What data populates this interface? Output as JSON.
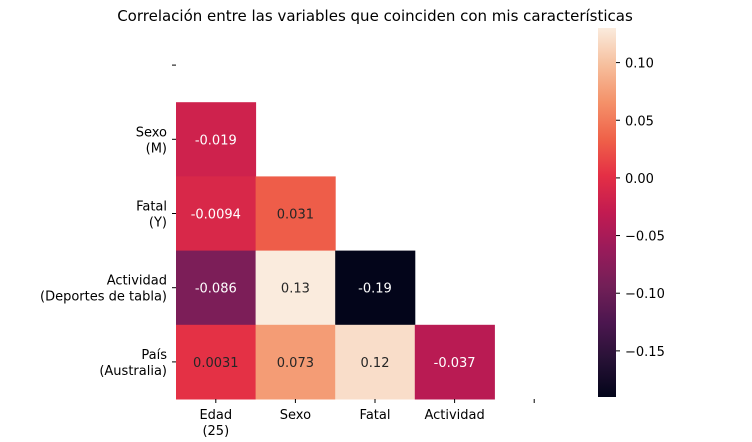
{
  "chart_data": {
    "type": "heatmap",
    "title": "Correlación entre las variables que coinciden con mis características",
    "x_labels": [
      [
        "Edad",
        "(25)"
      ],
      [
        "Sexo"
      ],
      [
        "Fatal"
      ],
      [
        "Actividad"
      ],
      [
        ""
      ]
    ],
    "y_labels": [
      [
        ""
      ],
      [
        "Sexo",
        "(M)"
      ],
      [
        "Fatal",
        "(Y)"
      ],
      [
        "Actividad",
        "(Deportes de tabla)"
      ],
      [
        "País",
        "(Australia)"
      ]
    ],
    "values": [
      [
        null,
        null,
        null,
        null,
        null
      ],
      [
        -0.019,
        null,
        null,
        null,
        null
      ],
      [
        -0.0094,
        0.031,
        null,
        null,
        null
      ],
      [
        -0.086,
        0.13,
        -0.19,
        null,
        null
      ],
      [
        0.0031,
        0.073,
        0.12,
        -0.037,
        null
      ]
    ],
    "cell_labels": [
      [
        null,
        null,
        null,
        null,
        null
      ],
      [
        "-0.019",
        null,
        null,
        null,
        null
      ],
      [
        "-0.0094",
        "0.031",
        null,
        null,
        null
      ],
      [
        "-0.086",
        "0.13",
        "-0.19",
        null,
        null
      ],
      [
        "0.0031",
        "0.073",
        "0.12",
        "-0.037",
        null
      ]
    ],
    "colorbar": {
      "min": -0.19,
      "max": 0.13,
      "ticks": [
        0.1,
        0.05,
        0.0,
        -0.05,
        -0.1,
        -0.15
      ],
      "tick_labels": [
        "0.10",
        "0.05",
        "0.00",
        "−0.05",
        "−0.10",
        "−0.15"
      ]
    },
    "colormap": "rocket",
    "mask": "upper-triangle-including-diagonal"
  }
}
